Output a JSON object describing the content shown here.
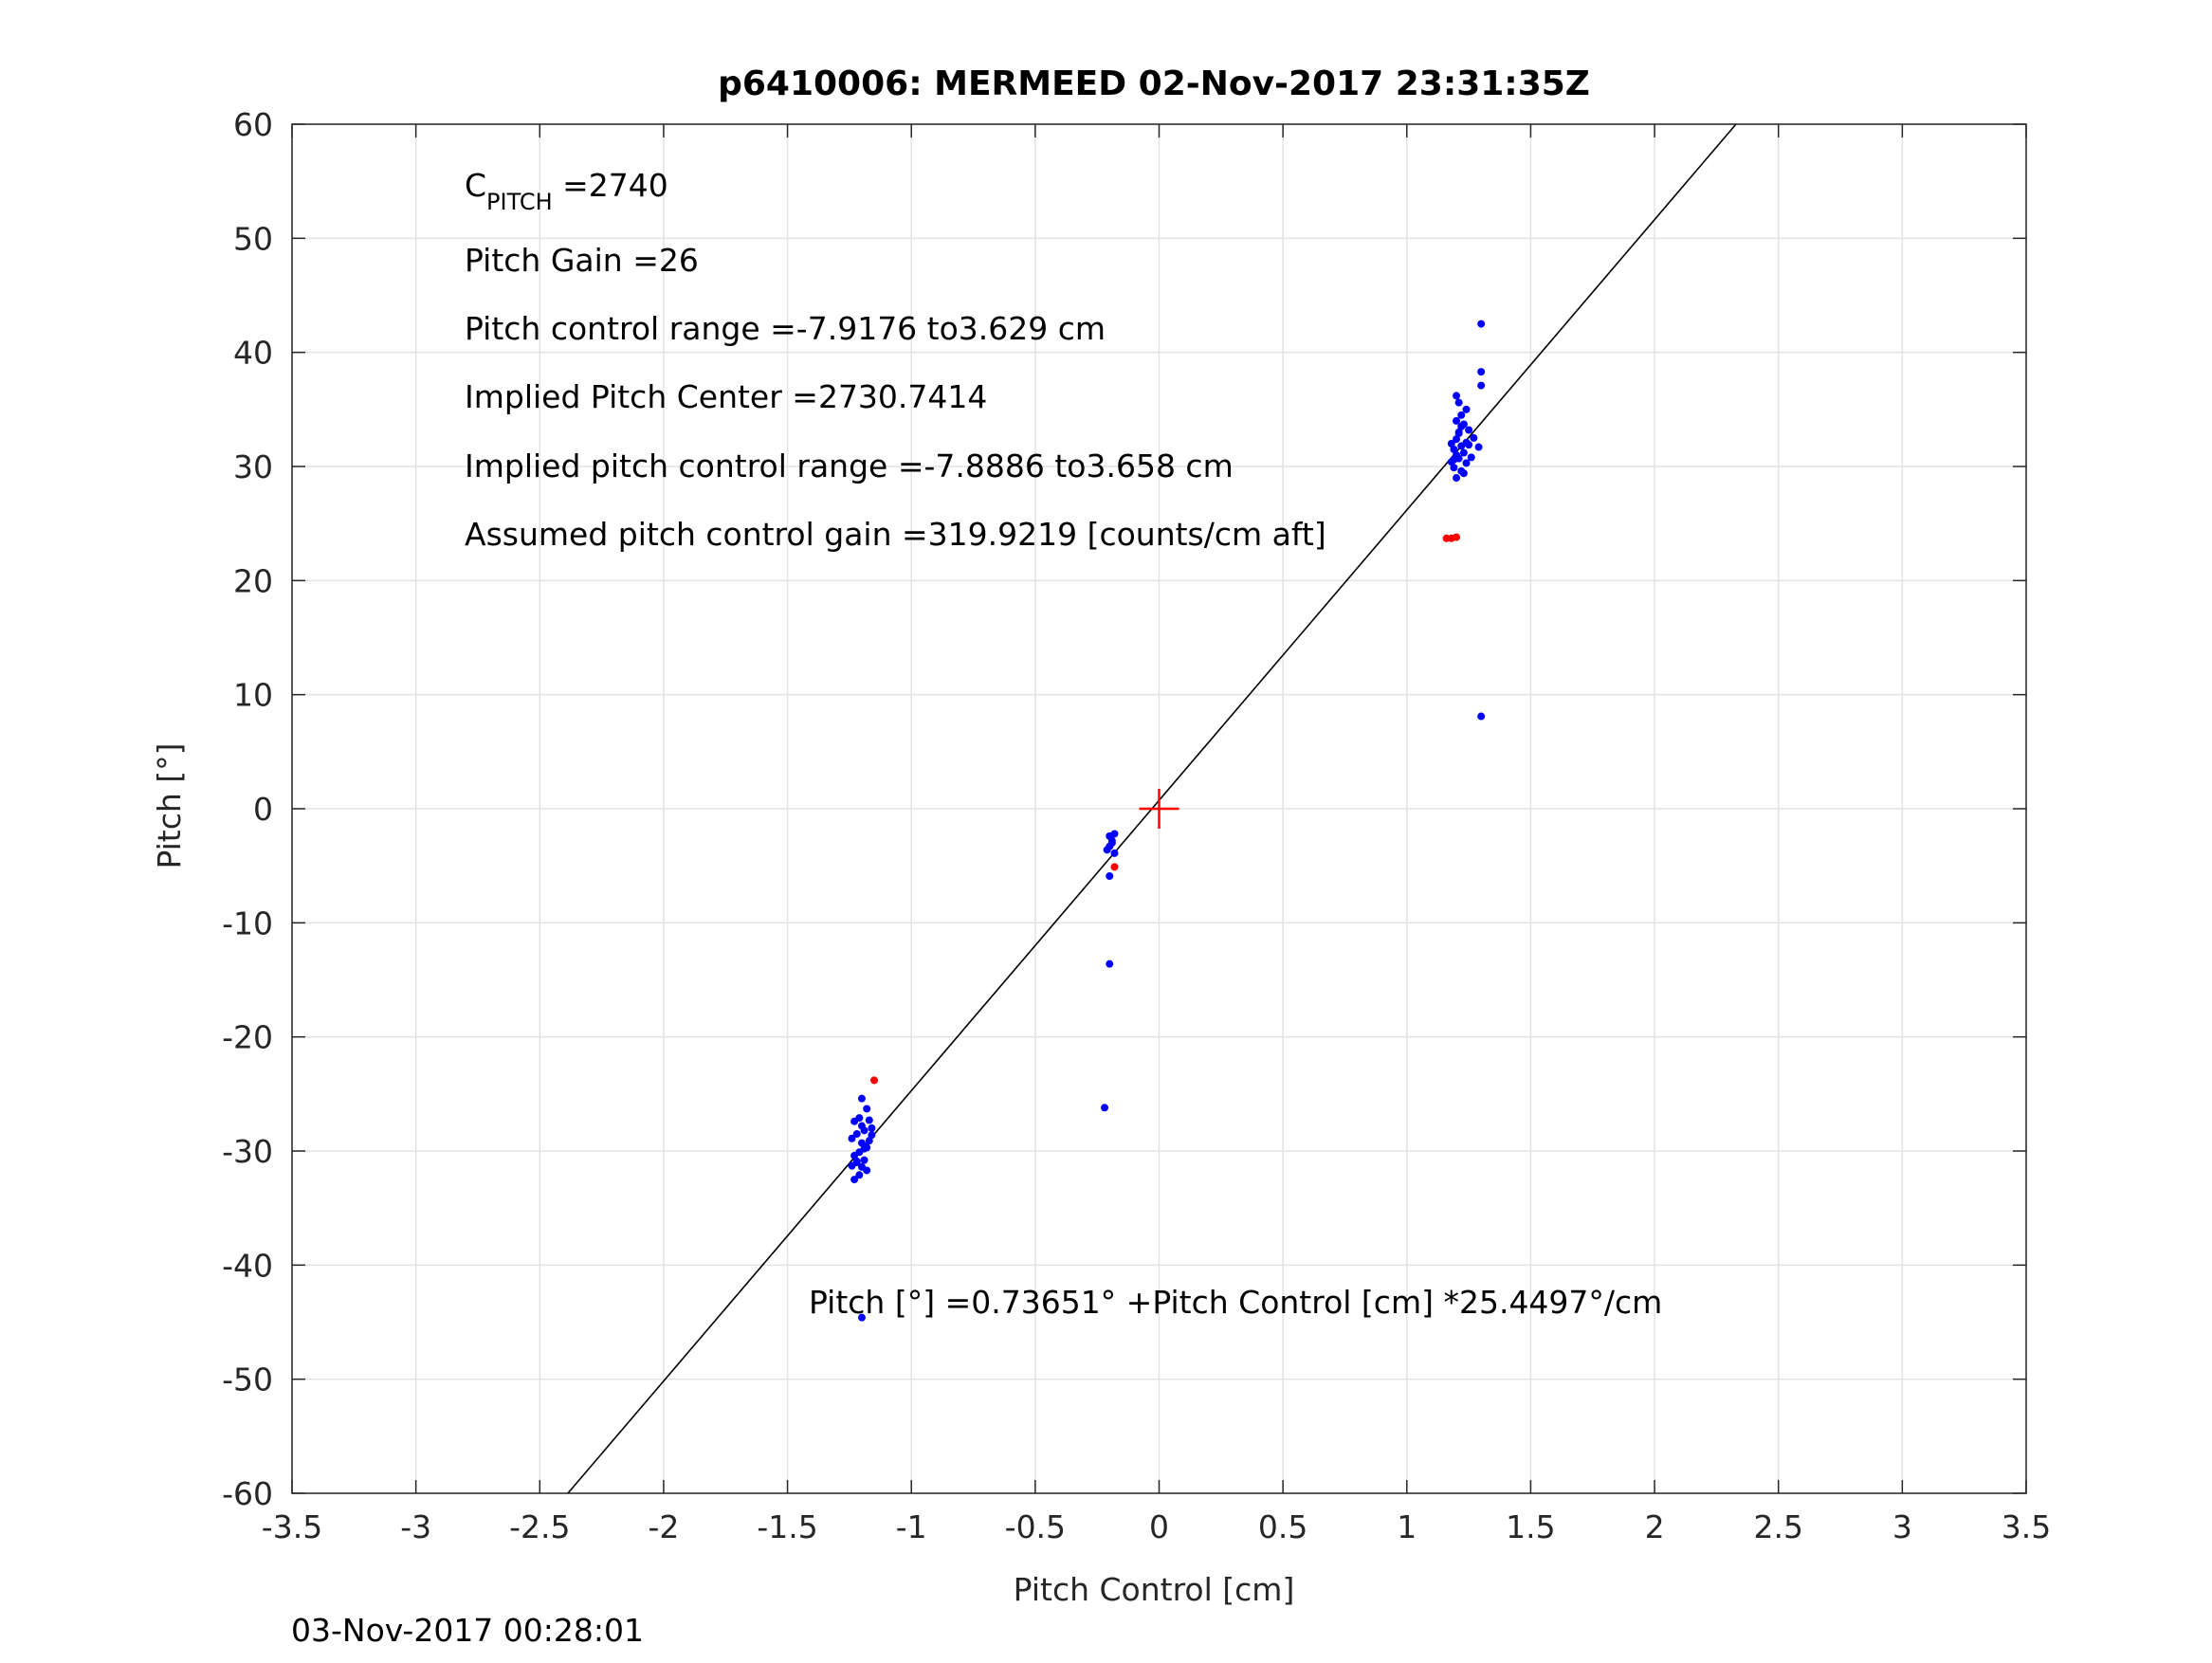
{
  "chart_data": {
    "type": "scatter",
    "title": "p6410006: MERMEED 02-Nov-2017 23:31:35Z",
    "xlabel": "Pitch Control [cm]",
    "ylabel": "Pitch [°]",
    "xlim": [
      -3.5,
      3.5
    ],
    "ylim": [
      -60,
      60
    ],
    "xticks": [
      -3.5,
      -3,
      -2.5,
      -2,
      -1.5,
      -1,
      -0.5,
      0,
      0.5,
      1,
      1.5,
      2,
      2.5,
      3,
      3.5
    ],
    "yticks": [
      60,
      50,
      40,
      30,
      20,
      10,
      0,
      -10,
      -20,
      -30,
      -40,
      -50,
      -60
    ],
    "grid": true,
    "colors": {
      "series_blue": "#0000ff",
      "series_red": "#ff0000",
      "fit_line": "#000000",
      "center_marker": "#ff0000"
    },
    "series": [
      {
        "color": "#0000ff",
        "points": [
          [
            1.3,
            42.5
          ],
          [
            1.3,
            38.3
          ],
          [
            1.3,
            37.1
          ],
          [
            1.3,
            8.1
          ],
          [
            1.2,
            36.2
          ],
          [
            1.21,
            35.6
          ],
          [
            1.22,
            34.5
          ],
          [
            1.24,
            35.0
          ],
          [
            1.23,
            33.7
          ],
          [
            1.21,
            33.0
          ],
          [
            1.25,
            33.2
          ],
          [
            1.27,
            32.5
          ],
          [
            1.29,
            31.7
          ],
          [
            1.19,
            31.5
          ],
          [
            1.2,
            31.0
          ],
          [
            1.18,
            30.4
          ],
          [
            1.19,
            29.9
          ],
          [
            1.21,
            30.7
          ],
          [
            1.22,
            31.8
          ],
          [
            1.2,
            32.4
          ],
          [
            1.23,
            31.2
          ],
          [
            1.24,
            30.3
          ],
          [
            1.22,
            29.6
          ],
          [
            1.2,
            29.0
          ],
          [
            1.25,
            31.9
          ],
          [
            1.26,
            30.8
          ],
          [
            1.18,
            32.0
          ],
          [
            1.21,
            32.9
          ],
          [
            1.24,
            32.1
          ],
          [
            1.19,
            30.6
          ],
          [
            1.23,
            29.4
          ],
          [
            1.22,
            33.5
          ],
          [
            1.2,
            34.0
          ],
          [
            -0.2,
            -2.4
          ],
          [
            -0.18,
            -2.2
          ],
          [
            -0.19,
            -2.8
          ],
          [
            -0.2,
            -3.3
          ],
          [
            -0.21,
            -3.6
          ],
          [
            -0.19,
            -3.0
          ],
          [
            -0.18,
            -3.9
          ],
          [
            -0.2,
            -5.9
          ],
          [
            -0.2,
            -13.6
          ],
          [
            -0.22,
            -26.2
          ],
          [
            -1.2,
            -25.4
          ],
          [
            -1.18,
            -26.3
          ],
          [
            -1.21,
            -27.1
          ],
          [
            -1.23,
            -27.4
          ],
          [
            -1.17,
            -27.3
          ],
          [
            -1.16,
            -28.0
          ],
          [
            -1.19,
            -28.2
          ],
          [
            -1.22,
            -28.5
          ],
          [
            -1.24,
            -28.9
          ],
          [
            -1.2,
            -29.3
          ],
          [
            -1.18,
            -29.7
          ],
          [
            -1.21,
            -30.1
          ],
          [
            -1.23,
            -30.4
          ],
          [
            -1.17,
            -29.1
          ],
          [
            -1.19,
            -30.8
          ],
          [
            -1.22,
            -31.0
          ],
          [
            -1.2,
            -31.4
          ],
          [
            -1.18,
            -31.7
          ],
          [
            -1.24,
            -31.3
          ],
          [
            -1.21,
            -32.1
          ],
          [
            -1.23,
            -32.5
          ],
          [
            -1.16,
            -28.6
          ],
          [
            -1.19,
            -29.8
          ],
          [
            -1.22,
            -30.9
          ],
          [
            -1.2,
            -27.8
          ],
          [
            -1.2,
            -44.6
          ]
        ]
      },
      {
        "color": "#ff0000",
        "points": [
          [
            -0.18,
            -5.1
          ],
          [
            -1.15,
            -23.8
          ],
          [
            1.16,
            23.7
          ],
          [
            1.18,
            23.7
          ],
          [
            1.2,
            23.8
          ]
        ]
      }
    ],
    "fit_line": {
      "intercept": 0.73651,
      "slope": 25.4497
    },
    "center_marker": [
      0,
      0
    ],
    "annotations": {
      "c_pitch_main": "C",
      "c_pitch_sub": "PITCH",
      "c_pitch_val": " =2740",
      "pitch_gain": "Pitch Gain =26",
      "pitch_control_range": "Pitch control range =-7.9176 to3.629 cm",
      "implied_center": "Implied Pitch Center =2730.7414",
      "implied_range": "Implied pitch control range =-7.8886 to3.658 cm",
      "assumed_gain": "Assumed pitch control gain =319.9219 [counts/cm aft]",
      "fit_equation": "Pitch [°] =0.73651° +Pitch Control [cm] *25.4497°/cm"
    },
    "footer_timestamp": "03-Nov-2017 00:28:01"
  }
}
